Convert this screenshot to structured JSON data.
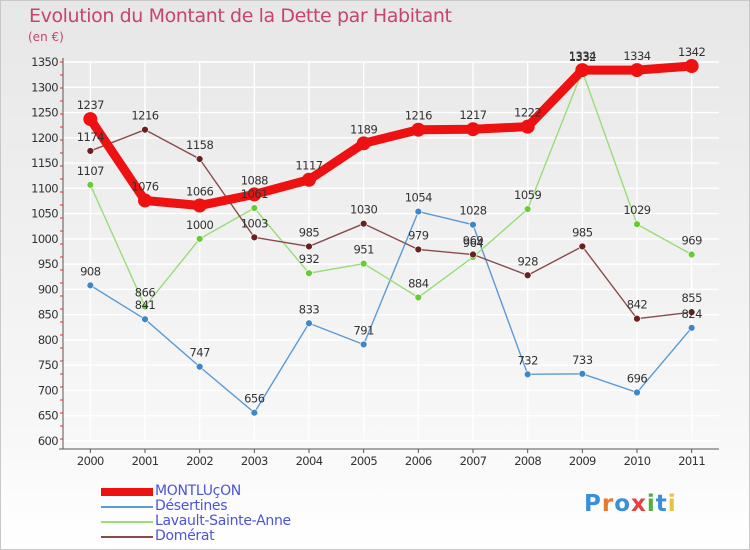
{
  "title": "Evolution du Montant de la Dette par Habitant",
  "unit_label": "(en €)",
  "logo_text": "Proxiti",
  "chart_data": {
    "type": "line",
    "title": "Evolution du Montant de la Dette par Habitant",
    "ylabel": "(en €)",
    "xlabel": "",
    "x": [
      "2000",
      "2001",
      "2002",
      "2003",
      "2004",
      "2005",
      "2006",
      "2007",
      "2008",
      "2009",
      "2010",
      "2011"
    ],
    "ylim": [
      600,
      1350
    ],
    "yticks": [
      600,
      650,
      700,
      750,
      800,
      850,
      900,
      950,
      1000,
      1050,
      1100,
      1150,
      1200,
      1250,
      1300,
      1350
    ],
    "grid": true,
    "legend_position": "bottom-left",
    "series": [
      {
        "name": "Désertines",
        "color": "#5b9bd5",
        "marker": "#3e87c7",
        "values": [
          908,
          841,
          747,
          656,
          833,
          791,
          1054,
          1028,
          732,
          733,
          696,
          824
        ]
      },
      {
        "name": "Lavault-Sainte-Anne",
        "color": "#99dd77",
        "marker": "#66cc33",
        "values": [
          1107,
          866,
          1000,
          1061,
          932,
          951,
          884,
          964,
          1059,
          1332,
          1029,
          969
        ]
      },
      {
        "name": "Domérat",
        "color": "#8a4a4a",
        "marker": "#6b1f1f",
        "values": [
          1174,
          1216,
          1158,
          1003,
          985,
          1030,
          979,
          969,
          928,
          985,
          842,
          855
        ]
      },
      {
        "name": "MONTLUçON",
        "color": "#ee1111",
        "marker": "#ee1111",
        "values": [
          1237,
          1076,
          1066,
          1088,
          1117,
          1189,
          1216,
          1217,
          1222,
          1334,
          1334,
          1342
        ]
      }
    ]
  }
}
